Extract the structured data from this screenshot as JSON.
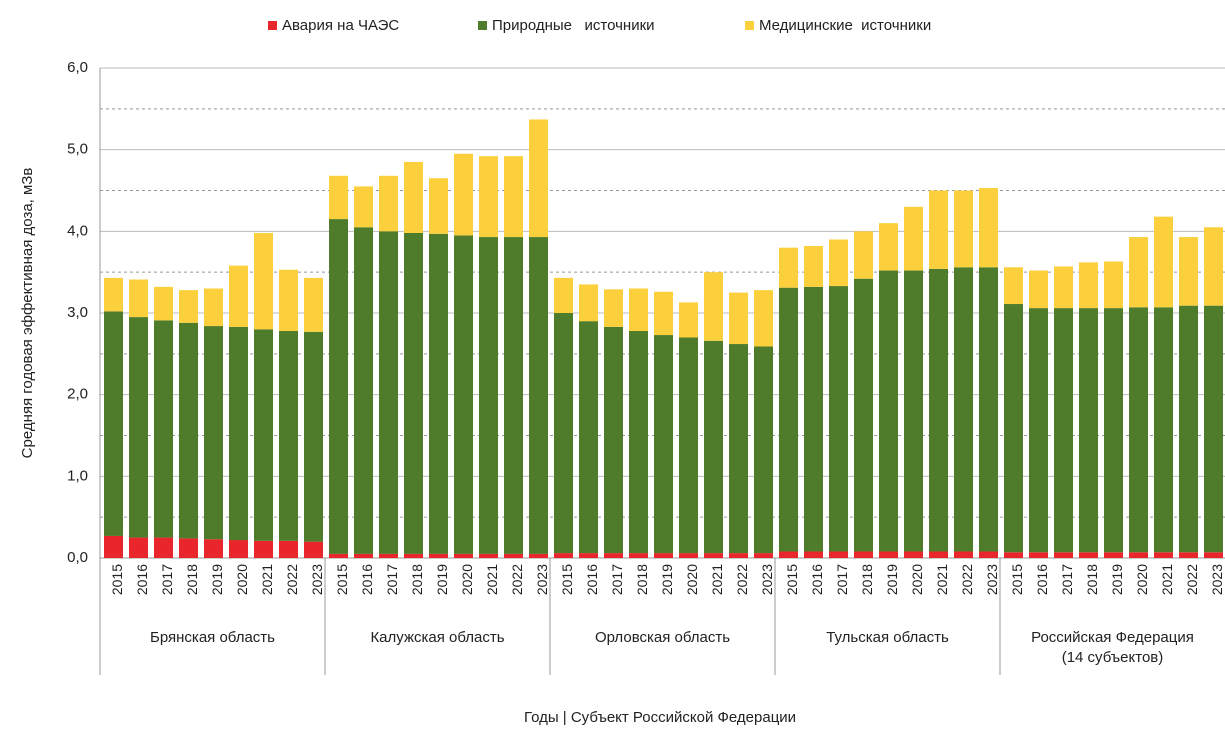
{
  "chart_data": {
    "type": "stacked_bar",
    "ylabel": "Средняя годовая  эффективная доза,  мЗв",
    "xlabel": "Годы | Субъект Российской Федерации",
    "groups": [
      "Брянская область",
      "Калужская область",
      "Орловская область",
      "Тульская область",
      "Российская Федерация\n(14 субъектов)"
    ],
    "categories": [
      "2015",
      "2016",
      "2017",
      "2018",
      "2019",
      "2020",
      "2021",
      "2022",
      "2023",
      "2015",
      "2016",
      "2017",
      "2018",
      "2019",
      "2020",
      "2021",
      "2022",
      "2023",
      "2015",
      "2016",
      "2017",
      "2018",
      "2019",
      "2020",
      "2021",
      "2022",
      "2023",
      "2015",
      "2016",
      "2017",
      "2018",
      "2019",
      "2020",
      "2021",
      "2022",
      "2023",
      "2015",
      "2016",
      "2017",
      "2018",
      "2019",
      "2020",
      "2021",
      "2022",
      "2023"
    ],
    "series": [
      {
        "name": "Авария на ЧАЭС",
        "color": "#e8262b",
        "values": [
          0.27,
          0.25,
          0.25,
          0.24,
          0.23,
          0.22,
          0.21,
          0.21,
          0.2,
          0.05,
          0.05,
          0.05,
          0.05,
          0.05,
          0.05,
          0.05,
          0.05,
          0.05,
          0.06,
          0.06,
          0.06,
          0.06,
          0.06,
          0.06,
          0.06,
          0.06,
          0.06,
          0.08,
          0.08,
          0.08,
          0.08,
          0.08,
          0.08,
          0.08,
          0.08,
          0.08,
          0.07,
          0.07,
          0.07,
          0.07,
          0.07,
          0.07,
          0.07,
          0.07,
          0.07
        ]
      },
      {
        "name": "Природные   источники",
        "color": "#4f7c2a",
        "values": [
          2.75,
          2.7,
          2.66,
          2.64,
          2.61,
          2.61,
          2.59,
          2.57,
          2.57,
          4.1,
          4.0,
          3.95,
          3.93,
          3.92,
          3.9,
          3.88,
          3.88,
          3.88,
          2.94,
          2.84,
          2.77,
          2.72,
          2.67,
          2.64,
          2.6,
          2.56,
          2.53,
          3.23,
          3.24,
          3.25,
          3.34,
          3.44,
          3.44,
          3.46,
          3.48,
          3.48,
          3.04,
          2.99,
          2.99,
          2.99,
          2.99,
          3.0,
          3.0,
          3.02,
          3.02
        ]
      },
      {
        "name": "Медицинские  источники",
        "color": "#fcd03c",
        "values": [
          0.41,
          0.46,
          0.41,
          0.4,
          0.46,
          0.75,
          1.18,
          0.75,
          0.66,
          0.53,
          0.5,
          0.68,
          0.87,
          0.68,
          1.0,
          0.99,
          0.99,
          1.44,
          0.43,
          0.45,
          0.46,
          0.52,
          0.53,
          0.43,
          0.84,
          0.63,
          0.69,
          0.49,
          0.5,
          0.57,
          0.58,
          0.58,
          0.78,
          0.96,
          0.94,
          0.97,
          0.45,
          0.46,
          0.51,
          0.56,
          0.57,
          0.86,
          1.11,
          0.84,
          0.96
        ]
      }
    ],
    "ylim": [
      0,
      6
    ],
    "yticks": [
      {
        "value": 0,
        "label": "0,0"
      },
      {
        "value": 1,
        "label": "1,0"
      },
      {
        "value": 2,
        "label": "2,0"
      },
      {
        "value": 3,
        "label": "3,0"
      },
      {
        "value": 4,
        "label": "4,0"
      },
      {
        "value": 5,
        "label": "5,0"
      },
      {
        "value": 6,
        "label": "6,0"
      }
    ],
    "minor_yticks": [
      0.5,
      1.5,
      2.5,
      3.5,
      4.5,
      5.5
    ],
    "grid": true,
    "legend": "top"
  }
}
